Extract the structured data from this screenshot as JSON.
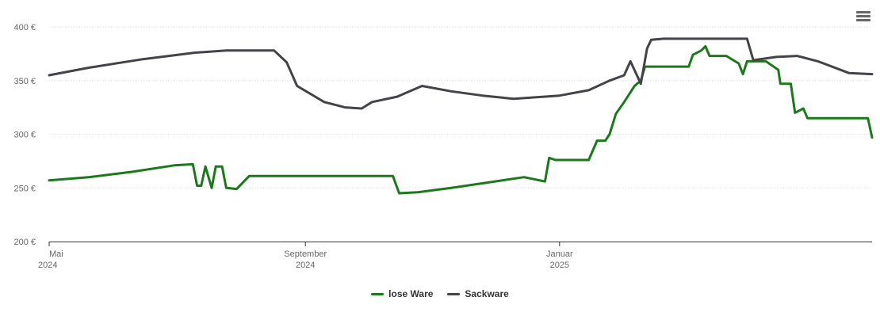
{
  "chart_data": {
    "type": "line",
    "title": "",
    "xlabel": "",
    "ylabel": "",
    "ylim": [
      200,
      400
    ],
    "xlim": [
      "2024-05-01",
      "2025-05-31"
    ],
    "yticks": [
      {
        "value": 200,
        "label": "200 €"
      },
      {
        "value": 250,
        "label": "250 €"
      },
      {
        "value": 300,
        "label": "300 €"
      },
      {
        "value": 350,
        "label": "350 €"
      },
      {
        "value": 400,
        "label": "400 €"
      }
    ],
    "xticks": [
      {
        "date": "2024-05-01",
        "line1": "Mai",
        "line2": "2024"
      },
      {
        "date": "2024-09-01",
        "line1": "September",
        "line2": "2024"
      },
      {
        "date": "2025-01-01",
        "line1": "Januar",
        "line2": "2025"
      }
    ],
    "grid": true,
    "legend_position": "bottom-center",
    "series": [
      {
        "name": "lose Ware",
        "color": "#1a7a1a",
        "points": [
          [
            "2024-05-01",
            257
          ],
          [
            "2024-05-20",
            260
          ],
          [
            "2024-06-10",
            265
          ],
          [
            "2024-06-30",
            271
          ],
          [
            "2024-07-09",
            272
          ],
          [
            "2024-07-11",
            252
          ],
          [
            "2024-07-13",
            252
          ],
          [
            "2024-07-15",
            270
          ],
          [
            "2024-07-18",
            250
          ],
          [
            "2024-07-20",
            270
          ],
          [
            "2024-07-23",
            270
          ],
          [
            "2024-07-25",
            250
          ],
          [
            "2024-07-30",
            249
          ],
          [
            "2024-08-05",
            261
          ],
          [
            "2024-08-20",
            261
          ],
          [
            "2024-09-15",
            261
          ],
          [
            "2024-10-13",
            261
          ],
          [
            "2024-10-16",
            245
          ],
          [
            "2024-10-25",
            246
          ],
          [
            "2024-11-10",
            250
          ],
          [
            "2024-12-01",
            256
          ],
          [
            "2024-12-15",
            260
          ],
          [
            "2024-12-25",
            256
          ],
          [
            "2024-12-27",
            278
          ],
          [
            "2024-12-30",
            276
          ],
          [
            "2025-01-15",
            276
          ],
          [
            "2025-01-19",
            294
          ],
          [
            "2025-01-23",
            294
          ],
          [
            "2025-01-25",
            300
          ],
          [
            "2025-01-28",
            319
          ],
          [
            "2025-02-01",
            330
          ],
          [
            "2025-02-06",
            345
          ],
          [
            "2025-02-09",
            350
          ],
          [
            "2025-02-11",
            363
          ],
          [
            "2025-02-20",
            363
          ],
          [
            "2025-03-04",
            363
          ],
          [
            "2025-03-06",
            374
          ],
          [
            "2025-03-10",
            378
          ],
          [
            "2025-03-12",
            382
          ],
          [
            "2025-03-14",
            373
          ],
          [
            "2025-03-22",
            373
          ],
          [
            "2025-03-28",
            366
          ],
          [
            "2025-03-30",
            356
          ],
          [
            "2025-04-01",
            368
          ],
          [
            "2025-04-10",
            368
          ],
          [
            "2025-04-16",
            360
          ],
          [
            "2025-04-17",
            347
          ],
          [
            "2025-04-22",
            347
          ],
          [
            "2025-04-24",
            320
          ],
          [
            "2025-04-28",
            324
          ],
          [
            "2025-04-30",
            315
          ],
          [
            "2025-05-29",
            315
          ],
          [
            "2025-05-31",
            297
          ]
        ]
      },
      {
        "name": "Sackware",
        "color": "#434348",
        "points": [
          [
            "2024-05-01",
            355
          ],
          [
            "2024-05-20",
            362
          ],
          [
            "2024-06-15",
            370
          ],
          [
            "2024-07-10",
            376
          ],
          [
            "2024-07-25",
            378
          ],
          [
            "2024-08-10",
            378
          ],
          [
            "2024-08-17",
            378
          ],
          [
            "2024-08-23",
            367
          ],
          [
            "2024-08-28",
            345
          ],
          [
            "2024-09-10",
            330
          ],
          [
            "2024-09-20",
            325
          ],
          [
            "2024-09-28",
            324
          ],
          [
            "2024-10-03",
            330
          ],
          [
            "2024-10-15",
            335
          ],
          [
            "2024-10-27",
            345
          ],
          [
            "2024-11-10",
            340
          ],
          [
            "2024-11-25",
            336
          ],
          [
            "2024-12-10",
            333
          ],
          [
            "2025-01-01",
            336
          ],
          [
            "2025-01-15",
            341
          ],
          [
            "2025-01-25",
            350
          ],
          [
            "2025-02-01",
            355
          ],
          [
            "2025-02-04",
            368
          ],
          [
            "2025-02-09",
            347
          ],
          [
            "2025-02-12",
            380
          ],
          [
            "2025-02-14",
            388
          ],
          [
            "2025-02-20",
            389
          ],
          [
            "2025-03-20",
            389
          ],
          [
            "2025-04-01",
            389
          ],
          [
            "2025-04-04",
            369
          ],
          [
            "2025-04-15",
            372
          ],
          [
            "2025-04-25",
            373
          ],
          [
            "2025-05-05",
            368
          ],
          [
            "2025-05-20",
            357
          ],
          [
            "2025-05-31",
            356
          ]
        ]
      }
    ]
  },
  "menu": {
    "icon": "hamburger-menu-icon"
  }
}
